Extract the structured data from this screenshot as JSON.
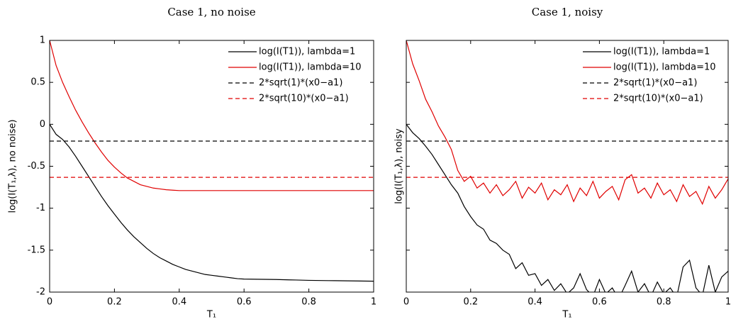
{
  "chart_data": [
    {
      "type": "line",
      "title": "Case 1, no noise",
      "xlabel": "T₁",
      "ylabel": "log(I(T₁,λ), no noise)",
      "xlim": [
        0,
        1
      ],
      "ylim": [
        -2,
        1
      ],
      "xticks": [
        0,
        0.2,
        0.4,
        0.6,
        0.8,
        1
      ],
      "yticks": [
        -2,
        -1.5,
        -1,
        -0.5,
        0,
        0.5,
        1
      ],
      "show_ytick_labels": true,
      "legend": "upper right",
      "x": [
        0,
        0.02,
        0.04,
        0.06,
        0.08,
        0.1,
        0.12,
        0.14,
        0.16,
        0.18,
        0.2,
        0.22,
        0.24,
        0.26,
        0.28,
        0.3,
        0.32,
        0.34,
        0.36,
        0.38,
        0.4,
        0.42,
        0.44,
        0.46,
        0.48,
        0.5,
        0.52,
        0.54,
        0.56,
        0.58,
        0.6,
        0.62,
        0.64,
        0.66,
        0.68,
        0.7,
        0.72,
        0.74,
        0.76,
        0.78,
        0.8,
        0.82,
        0.84,
        0.86,
        0.88,
        0.9,
        0.92,
        0.94,
        0.96,
        0.98,
        1
      ],
      "series": [
        {
          "name": "log(I(T1)), lambda=1",
          "color": "#000000",
          "dashed": false,
          "values": [
            0,
            -0.12,
            -0.18,
            -0.27,
            -0.38,
            -0.5,
            -0.62,
            -0.74,
            -0.86,
            -0.97,
            -1.07,
            -1.17,
            -1.26,
            -1.34,
            -1.41,
            -1.48,
            -1.54,
            -1.59,
            -1.63,
            -1.67,
            -1.7,
            -1.73,
            -1.75,
            -1.77,
            -1.79,
            -1.8,
            -1.81,
            -1.82,
            -1.83,
            -1.84,
            -1.845,
            -1.846,
            -1.847,
            -1.848,
            -1.849,
            -1.85,
            -1.852,
            -1.854,
            -1.856,
            -1.858,
            -1.86,
            -1.861,
            -1.862,
            -1.863,
            -1.864,
            -1.865,
            -1.866,
            -1.867,
            -1.868,
            -1.869,
            -1.87
          ]
        },
        {
          "name": "log(I(T1)), lambda=10",
          "color": "#e00000",
          "dashed": false,
          "values": [
            1,
            0.7,
            0.5,
            0.33,
            0.17,
            0.03,
            -0.1,
            -0.22,
            -0.33,
            -0.43,
            -0.51,
            -0.58,
            -0.64,
            -0.68,
            -0.72,
            -0.74,
            -0.76,
            -0.77,
            -0.78,
            -0.785,
            -0.79,
            -0.79,
            -0.79,
            -0.79,
            -0.79,
            -0.79,
            -0.79,
            -0.79,
            -0.79,
            -0.79,
            -0.79,
            -0.79,
            -0.79,
            -0.79,
            -0.79,
            -0.79,
            -0.79,
            -0.79,
            -0.79,
            -0.79,
            -0.79,
            -0.79,
            -0.79,
            -0.79,
            -0.79,
            -0.79,
            -0.79,
            -0.79,
            -0.79,
            -0.79,
            -0.79
          ]
        },
        {
          "name": "2*sqrt(1)*(x0−a1)",
          "color": "#000000",
          "dashed": true,
          "x": [
            0,
            1
          ],
          "values": [
            -0.2,
            -0.2
          ]
        },
        {
          "name": "2*sqrt(10)*(x0−a1)",
          "color": "#e00000",
          "dashed": true,
          "x": [
            0,
            1
          ],
          "values": [
            -0.632,
            -0.632
          ]
        }
      ]
    },
    {
      "type": "line",
      "title": "Case 1, noisy",
      "xlabel": "T₁",
      "ylabel": "log(I(T₁,λ), noisy",
      "xlim": [
        0,
        1
      ],
      "ylim": [
        -2,
        1
      ],
      "xticks": [
        0,
        0.2,
        0.4,
        0.6,
        0.8,
        1
      ],
      "yticks": [
        -2,
        -1.5,
        -1,
        -0.5,
        0,
        0.5,
        1
      ],
      "show_ytick_labels": false,
      "legend": "upper right",
      "x": [
        0,
        0.02,
        0.04,
        0.06,
        0.08,
        0.1,
        0.12,
        0.14,
        0.16,
        0.18,
        0.2,
        0.22,
        0.24,
        0.26,
        0.28,
        0.3,
        0.32,
        0.34,
        0.36,
        0.38,
        0.4,
        0.42,
        0.44,
        0.46,
        0.48,
        0.5,
        0.52,
        0.54,
        0.56,
        0.58,
        0.6,
        0.62,
        0.64,
        0.66,
        0.68,
        0.7,
        0.72,
        0.74,
        0.76,
        0.78,
        0.8,
        0.82,
        0.84,
        0.86,
        0.88,
        0.9,
        0.92,
        0.94,
        0.96,
        0.98,
        1
      ],
      "series": [
        {
          "name": "log(I(T1)), lambda=1",
          "color": "#000000",
          "dashed": false,
          "values": [
            0,
            -0.1,
            -0.17,
            -0.26,
            -0.36,
            -0.48,
            -0.6,
            -0.72,
            -0.82,
            -0.98,
            -1.1,
            -1.2,
            -1.25,
            -1.38,
            -1.42,
            -1.5,
            -1.55,
            -1.72,
            -1.65,
            -1.8,
            -1.78,
            -1.92,
            -1.85,
            -1.98,
            -1.9,
            -2.02,
            -1.95,
            -1.78,
            -1.97,
            -2.05,
            -1.85,
            -2.02,
            -1.95,
            -2.08,
            -1.92,
            -1.75,
            -2.0,
            -1.9,
            -2.05,
            -1.88,
            -2.02,
            -1.95,
            -2.06,
            -1.7,
            -1.62,
            -1.95,
            -2.04,
            -1.68,
            -2.0,
            -1.82,
            -1.75
          ]
        },
        {
          "name": "log(I(T1)), lambda=10",
          "color": "#e00000",
          "dashed": false,
          "values": [
            1,
            0.72,
            0.52,
            0.3,
            0.15,
            -0.02,
            -0.15,
            -0.3,
            -0.55,
            -0.68,
            -0.62,
            -0.76,
            -0.7,
            -0.82,
            -0.72,
            -0.85,
            -0.78,
            -0.68,
            -0.88,
            -0.75,
            -0.82,
            -0.7,
            -0.9,
            -0.78,
            -0.84,
            -0.72,
            -0.92,
            -0.76,
            -0.85,
            -0.68,
            -0.88,
            -0.8,
            -0.74,
            -0.9,
            -0.66,
            -0.6,
            -0.82,
            -0.76,
            -0.88,
            -0.7,
            -0.84,
            -0.78,
            -0.92,
            -0.72,
            -0.86,
            -0.8,
            -0.95,
            -0.74,
            -0.88,
            -0.78,
            -0.65
          ]
        },
        {
          "name": "2*sqrt(1)*(x0−a1)",
          "color": "#000000",
          "dashed": true,
          "x": [
            0,
            1
          ],
          "values": [
            -0.2,
            -0.2
          ]
        },
        {
          "name": "2*sqrt(10)*(x0−a1)",
          "color": "#e00000",
          "dashed": true,
          "x": [
            0,
            1
          ],
          "values": [
            -0.632,
            -0.632
          ]
        }
      ]
    }
  ]
}
